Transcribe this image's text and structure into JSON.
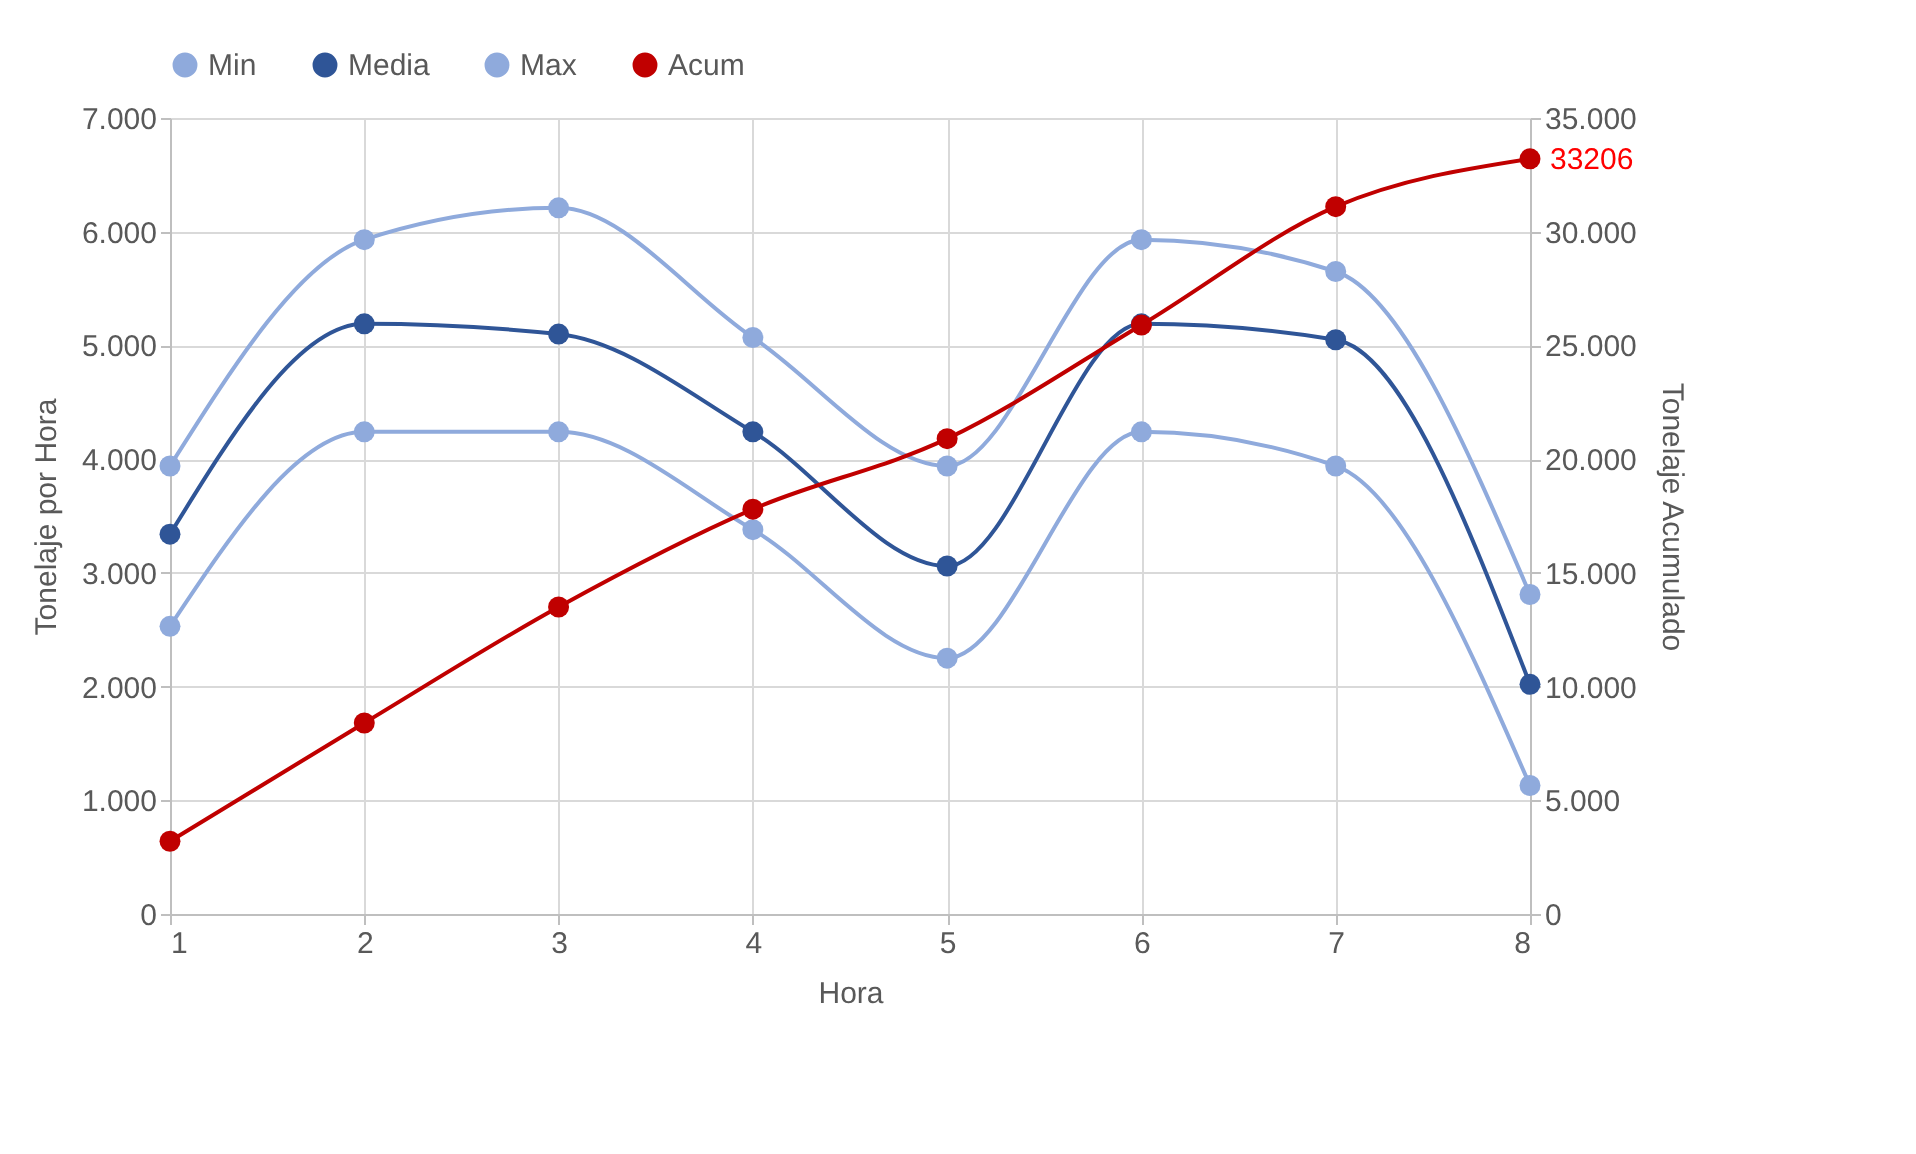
{
  "chart_data": {
    "type": "line",
    "xlabel": "Hora",
    "ylabel": "Tonelaje por Hora",
    "y2label": "Tonelaje Acumulado",
    "x": [
      1,
      2,
      3,
      4,
      5,
      6,
      7,
      8
    ],
    "series": [
      {
        "name": "Min",
        "color": "#8faadc",
        "values": [
          2530,
          4240,
          4240,
          3380,
          2250,
          4240,
          3940,
          1130
        ]
      },
      {
        "name": "Media",
        "color": "#2f5597",
        "values": [
          3340,
          5190,
          5100,
          4240,
          3060,
          5190,
          5050,
          2020
        ]
      },
      {
        "name": "Max",
        "color": "#8faadc",
        "values": [
          3940,
          5930,
          6210,
          5070,
          3940,
          5930,
          5650,
          2810
        ]
      },
      {
        "name": "Acum",
        "color": "#c00000",
        "axis": "y2",
        "values": [
          3200,
          8400,
          13500,
          17800,
          20900,
          25900,
          31100,
          33206
        ],
        "value_labels": [
          null,
          null,
          null,
          null,
          null,
          null,
          null,
          "33206"
        ]
      }
    ],
    "xlim": [
      1,
      8
    ],
    "xticks": [
      1,
      2,
      3,
      4,
      5,
      6,
      7,
      8
    ],
    "ylim": [
      0,
      7000
    ],
    "yticks": [
      0,
      {
        "value": 1000,
        "label": "1.000"
      },
      {
        "value": 2000,
        "label": "2.000"
      },
      {
        "value": 3000,
        "label": "3.000"
      },
      {
        "value": 4000,
        "label": "4.000"
      },
      {
        "value": 5000,
        "label": "5.000"
      },
      {
        "value": 6000,
        "label": "6.000"
      },
      {
        "value": 7000,
        "label": "7.000"
      }
    ],
    "y2lim": [
      0,
      35000
    ],
    "y2ticks": [
      0,
      {
        "value": 5000,
        "label": "5.000"
      },
      {
        "value": 10000,
        "label": "10.000"
      },
      {
        "value": 15000,
        "label": "15.000"
      },
      {
        "value": 20000,
        "label": "20.000"
      },
      {
        "value": 25000,
        "label": "25.000"
      },
      {
        "value": 30000,
        "label": "30.000"
      },
      {
        "value": 35000,
        "label": "35.000"
      }
    ],
    "grid": true,
    "legend": "top",
    "marker": "circle",
    "line_style": "solid"
  }
}
